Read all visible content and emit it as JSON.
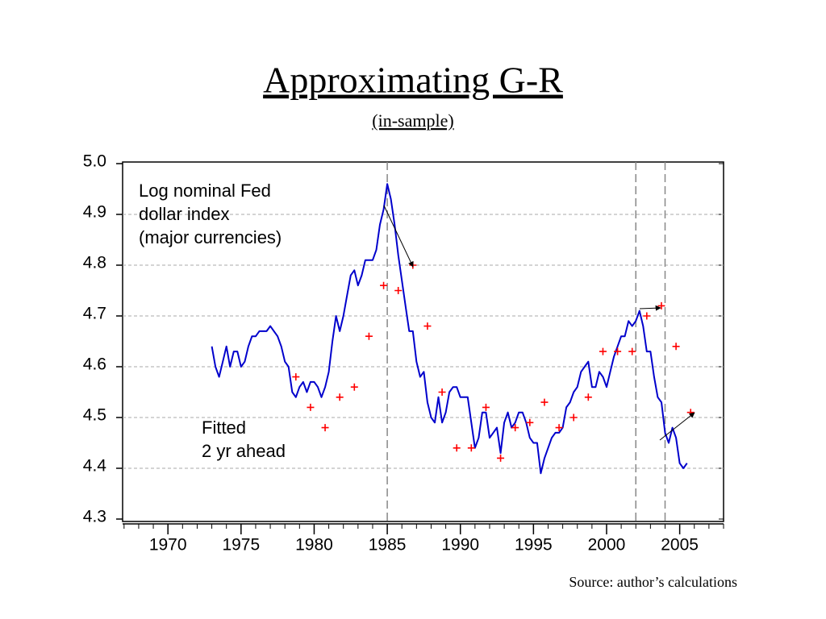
{
  "chart_data": {
    "type": "line",
    "title": "Approximating G-R",
    "subtitle": "(in-sample)",
    "source": "Source: author’s calculations",
    "annotations": [
      {
        "lines": [
          "Log nominal Fed",
          "dollar index",
          "(major currencies)"
        ]
      },
      {
        "lines": [
          "Fitted",
          "2 yr ahead"
        ]
      }
    ],
    "xlim": [
      1966.9,
      2008
    ],
    "xticks": [
      1970,
      1975,
      1980,
      1985,
      1990,
      1995,
      2000,
      2005
    ],
    "ylim": [
      4.3,
      5.0
    ],
    "yticks": [
      {
        "value": 5.0,
        "label": "5.0"
      },
      4.9,
      4.8,
      4.7,
      4.6,
      4.5,
      4.4,
      4.3
    ],
    "grid": true,
    "vlines": [
      1985,
      2002,
      2004
    ],
    "series": [
      {
        "color": "#0000cc",
        "marker": "line",
        "x": [
          1973,
          1973.25,
          1973.5,
          1973.75,
          1974,
          1974.25,
          1974.5,
          1974.75,
          1975,
          1975.25,
          1975.5,
          1975.75,
          1976,
          1976.25,
          1976.5,
          1976.75,
          1977,
          1977.25,
          1977.5,
          1977.75,
          1978,
          1978.25,
          1978.5,
          1978.75,
          1979,
          1979.25,
          1979.5,
          1979.75,
          1980,
          1980.25,
          1980.5,
          1980.75,
          1981,
          1981.25,
          1981.5,
          1981.75,
          1982,
          1982.25,
          1982.5,
          1982.75,
          1983,
          1983.25,
          1983.5,
          1983.75,
          1984,
          1984.25,
          1984.5,
          1984.75,
          1985,
          1985.25,
          1985.5,
          1985.75,
          1986,
          1986.25,
          1986.5,
          1986.75,
          1987,
          1987.25,
          1987.5,
          1987.75,
          1988,
          1988.25,
          1988.5,
          1988.75,
          1989,
          1989.25,
          1989.5,
          1989.75,
          1990,
          1990.25,
          1990.5,
          1990.75,
          1991,
          1991.25,
          1991.5,
          1991.75,
          1992,
          1992.25,
          1992.5,
          1992.75,
          1993,
          1993.25,
          1993.5,
          1993.75,
          1994,
          1994.25,
          1994.5,
          1994.75,
          1995,
          1995.25,
          1995.5,
          1995.75,
          1996,
          1996.25,
          1996.5,
          1996.75,
          1997,
          1997.25,
          1997.5,
          1997.75,
          1998,
          1998.25,
          1998.5,
          1998.75,
          1999,
          1999.25,
          1999.5,
          1999.75,
          2000,
          2000.25,
          2000.5,
          2000.75,
          2001,
          2001.25,
          2001.5,
          2001.75,
          2002,
          2002.25,
          2002.5,
          2002.75,
          2003,
          2003.25,
          2003.5,
          2003.75,
          2004,
          2004.25,
          2004.5,
          2004.75,
          2005,
          2005.25,
          2005.5
        ],
        "values": [
          4.64,
          4.6,
          4.58,
          4.61,
          4.64,
          4.6,
          4.63,
          4.63,
          4.6,
          4.61,
          4.64,
          4.66,
          4.66,
          4.67,
          4.67,
          4.67,
          4.68,
          4.67,
          4.66,
          4.64,
          4.61,
          4.6,
          4.55,
          4.54,
          4.56,
          4.57,
          4.55,
          4.57,
          4.57,
          4.56,
          4.54,
          4.56,
          4.59,
          4.65,
          4.7,
          4.67,
          4.7,
          4.74,
          4.78,
          4.79,
          4.76,
          4.78,
          4.81,
          4.81,
          4.81,
          4.83,
          4.88,
          4.91,
          4.96,
          4.93,
          4.88,
          4.82,
          4.77,
          4.72,
          4.67,
          4.67,
          4.61,
          4.58,
          4.59,
          4.53,
          4.5,
          4.49,
          4.54,
          4.49,
          4.51,
          4.55,
          4.56,
          4.56,
          4.54,
          4.54,
          4.54,
          4.49,
          4.44,
          4.46,
          4.51,
          4.51,
          4.46,
          4.47,
          4.48,
          4.43,
          4.49,
          4.51,
          4.48,
          4.49,
          4.51,
          4.51,
          4.49,
          4.46,
          4.45,
          4.45,
          4.39,
          4.42,
          4.44,
          4.46,
          4.47,
          4.47,
          4.48,
          4.52,
          4.53,
          4.55,
          4.56,
          4.59,
          4.6,
          4.61,
          4.56,
          4.56,
          4.59,
          4.58,
          4.56,
          4.59,
          4.62,
          4.64,
          4.66,
          4.66,
          4.69,
          4.68,
          4.69,
          4.71,
          4.68,
          4.63,
          4.63,
          4.58,
          4.54,
          4.53,
          4.47,
          4.45,
          4.48,
          4.46,
          4.41,
          4.4,
          4.41
        ]
      },
      {
        "color": "#ff0000",
        "marker": "plus",
        "x": [
          1978.75,
          1979.75,
          1980.75,
          1981.75,
          1982.75,
          1983.75,
          1984.75,
          1985.75,
          1986.75,
          1987.75,
          1988.75,
          1989.75,
          1990.75,
          1991.75,
          1992.75,
          1993.75,
          1994.75,
          1995.75,
          1996.75,
          1997.75,
          1998.75,
          1999.75,
          2000.75,
          2001.75,
          2002.75,
          2003.75,
          2004.75,
          2005.75
        ],
        "values": [
          4.58,
          4.52,
          4.48,
          4.54,
          4.56,
          4.66,
          4.76,
          4.75,
          4.8,
          4.68,
          4.55,
          4.44,
          4.44,
          4.52,
          4.42,
          4.48,
          4.49,
          4.53,
          4.48,
          4.5,
          4.54,
          4.63,
          4.63,
          4.63,
          4.7,
          4.72,
          4.64,
          4.51
        ]
      }
    ]
  }
}
